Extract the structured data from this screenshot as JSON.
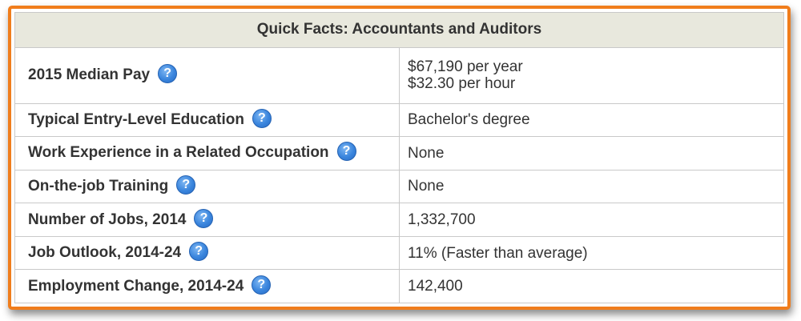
{
  "table": {
    "title": "Quick Facts: Accountants and Auditors",
    "help_glyph": "?",
    "rows": [
      {
        "label": "2015 Median Pay",
        "value_lines": [
          "$67,190 per year",
          "$32.30 per hour"
        ]
      },
      {
        "label": "Typical Entry-Level Education",
        "value": "Bachelor's degree"
      },
      {
        "label": "Work Experience in a Related Occupation",
        "value": "None"
      },
      {
        "label": "On-the-job Training",
        "value": "None"
      },
      {
        "label": "Number of Jobs, 2014",
        "value": "1,332,700"
      },
      {
        "label": "Job Outlook, 2014-24",
        "value": "11% (Faster than average)"
      },
      {
        "label": "Employment Change, 2014-24",
        "value": "142,400"
      }
    ]
  },
  "colors": {
    "frame_border": "#f07d1c",
    "header_background": "#e8e8dd",
    "help_icon": "#3a85dd"
  }
}
